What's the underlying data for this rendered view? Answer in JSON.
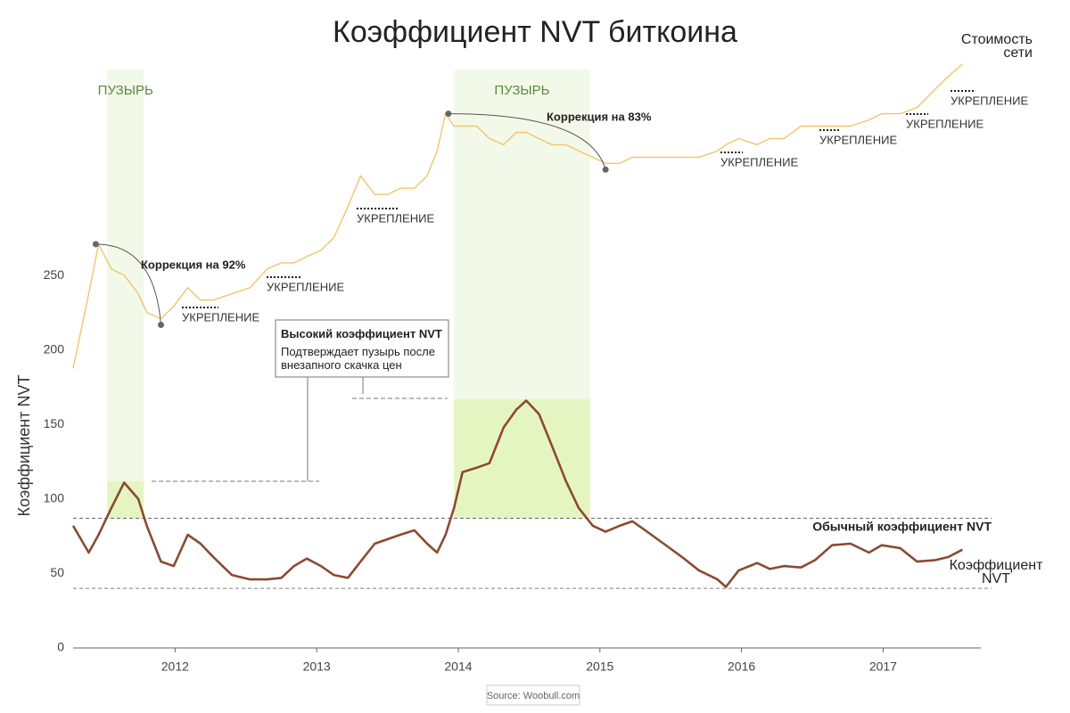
{
  "chart_data": {
    "type": "line",
    "title": "Коэффициент NVT биткоина",
    "ylabel": "Коэффициент NVT",
    "source": "Source: Woobull.com",
    "xlim": [
      2011.28,
      2017.69
    ],
    "xticks": [
      2012,
      2013,
      2014,
      2015,
      2016,
      2017
    ],
    "ylim": [
      0,
      417
    ],
    "yticks": [
      0,
      50,
      100,
      150,
      200,
      250
    ],
    "y2lim": [
      0,
      100
    ],
    "x": [
      2011.28,
      2011.39,
      2011.46,
      2011.55,
      2011.64,
      2011.74,
      2011.8,
      2011.9,
      2011.99,
      2012.09,
      2012.18,
      2012.27,
      2012.4,
      2012.53,
      2012.65,
      2012.75,
      2012.84,
      2012.93,
      2013.03,
      2013.12,
      2013.22,
      2013.31,
      2013.41,
      2013.5,
      2013.59,
      2013.69,
      2013.78,
      2013.85,
      2013.91,
      2013.97,
      2014.03,
      2014.13,
      2014.22,
      2014.32,
      2014.41,
      2014.48,
      2014.57,
      2014.66,
      2014.76,
      2014.85,
      2014.95,
      2015.04,
      2015.14,
      2015.23,
      2015.32,
      2015.45,
      2015.58,
      2015.7,
      2015.83,
      2015.89,
      2015.98,
      2016.11,
      2016.2,
      2016.3,
      2016.42,
      2016.52,
      2016.64,
      2016.77,
      2016.9,
      2016.99,
      2017.12,
      2017.24,
      2017.37,
      2017.46,
      2017.56
    ],
    "series": [
      {
        "name": "Коэффициент NVT",
        "color": "#8b4a32",
        "values": [
          82,
          64,
          76,
          94,
          111,
          100,
          82,
          58,
          55,
          76,
          70,
          61,
          49,
          46,
          46,
          47,
          55,
          60,
          55,
          49,
          47,
          58,
          70,
          73,
          76,
          79,
          70,
          64,
          76,
          94,
          118,
          121,
          124,
          148,
          160,
          166,
          157,
          136,
          112,
          94,
          82,
          78,
          82,
          85,
          79,
          70,
          61,
          52,
          46,
          41,
          52,
          57,
          53,
          55,
          54,
          59,
          69,
          70,
          64,
          69,
          67,
          58,
          59,
          61,
          66
        ]
      },
      {
        "name": "Стоимость сети",
        "color": "#f2c46d",
        "axis": "y2",
        "values": [
          45,
          57,
          65,
          61,
          60,
          57,
          54,
          53,
          55,
          58,
          56,
          56,
          57,
          58,
          61,
          62,
          62,
          63,
          64,
          66,
          71,
          76,
          73,
          73,
          74,
          74,
          76,
          80,
          86,
          84,
          84,
          84,
          82,
          81,
          83,
          83,
          82,
          81,
          81,
          80,
          79,
          78,
          78,
          79,
          79,
          79,
          79,
          79,
          80,
          81,
          82,
          81,
          82,
          82,
          84,
          84,
          84,
          84,
          85,
          86,
          86,
          87,
          90,
          92,
          94
        ]
      }
    ],
    "bubbles": [
      {
        "label": "ПУЗЫРЬ",
        "x": [
          2011.52,
          2011.78
        ],
        "nvt": 112
      },
      {
        "label": "ПУЗЫРЬ",
        "x": [
          2013.97,
          2014.93
        ],
        "nvt": 167
      }
    ],
    "normal_nvt": {
      "label": "Обычный коэффициент NVT",
      "range": [
        40,
        87
      ]
    },
    "corrections": [
      {
        "label": "Коррекция на 92%",
        "from": [
          2011.44,
          65
        ],
        "to": [
          2011.9,
          52
        ]
      },
      {
        "label": "Коррекция на 83%",
        "from": [
          2013.93,
          86
        ],
        "to": [
          2015.04,
          77
        ]
      }
    ],
    "consolidation_label": "УКРЕПЛЕНИЕ",
    "note": {
      "title": "Высокий коэффициент NVT",
      "text": "Подтверждает пузырь после внезапного скачка цен"
    }
  }
}
